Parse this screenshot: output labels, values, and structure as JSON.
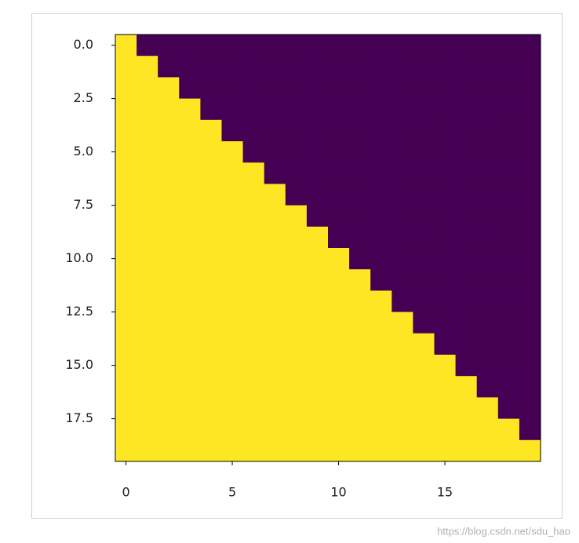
{
  "chart_data": {
    "type": "heatmap",
    "values": [
      [
        1,
        0,
        0,
        0,
        0,
        0,
        0,
        0,
        0,
        0,
        0,
        0,
        0,
        0,
        0,
        0,
        0,
        0,
        0,
        0
      ],
      [
        1,
        1,
        0,
        0,
        0,
        0,
        0,
        0,
        0,
        0,
        0,
        0,
        0,
        0,
        0,
        0,
        0,
        0,
        0,
        0
      ],
      [
        1,
        1,
        1,
        0,
        0,
        0,
        0,
        0,
        0,
        0,
        0,
        0,
        0,
        0,
        0,
        0,
        0,
        0,
        0,
        0
      ],
      [
        1,
        1,
        1,
        1,
        0,
        0,
        0,
        0,
        0,
        0,
        0,
        0,
        0,
        0,
        0,
        0,
        0,
        0,
        0,
        0
      ],
      [
        1,
        1,
        1,
        1,
        1,
        0,
        0,
        0,
        0,
        0,
        0,
        0,
        0,
        0,
        0,
        0,
        0,
        0,
        0,
        0
      ],
      [
        1,
        1,
        1,
        1,
        1,
        1,
        0,
        0,
        0,
        0,
        0,
        0,
        0,
        0,
        0,
        0,
        0,
        0,
        0,
        0
      ],
      [
        1,
        1,
        1,
        1,
        1,
        1,
        1,
        0,
        0,
        0,
        0,
        0,
        0,
        0,
        0,
        0,
        0,
        0,
        0,
        0
      ],
      [
        1,
        1,
        1,
        1,
        1,
        1,
        1,
        1,
        0,
        0,
        0,
        0,
        0,
        0,
        0,
        0,
        0,
        0,
        0,
        0
      ],
      [
        1,
        1,
        1,
        1,
        1,
        1,
        1,
        1,
        1,
        0,
        0,
        0,
        0,
        0,
        0,
        0,
        0,
        0,
        0,
        0
      ],
      [
        1,
        1,
        1,
        1,
        1,
        1,
        1,
        1,
        1,
        1,
        0,
        0,
        0,
        0,
        0,
        0,
        0,
        0,
        0,
        0
      ],
      [
        1,
        1,
        1,
        1,
        1,
        1,
        1,
        1,
        1,
        1,
        1,
        0,
        0,
        0,
        0,
        0,
        0,
        0,
        0,
        0
      ],
      [
        1,
        1,
        1,
        1,
        1,
        1,
        1,
        1,
        1,
        1,
        1,
        1,
        0,
        0,
        0,
        0,
        0,
        0,
        0,
        0
      ],
      [
        1,
        1,
        1,
        1,
        1,
        1,
        1,
        1,
        1,
        1,
        1,
        1,
        1,
        0,
        0,
        0,
        0,
        0,
        0,
        0
      ],
      [
        1,
        1,
        1,
        1,
        1,
        1,
        1,
        1,
        1,
        1,
        1,
        1,
        1,
        1,
        0,
        0,
        0,
        0,
        0,
        0
      ],
      [
        1,
        1,
        1,
        1,
        1,
        1,
        1,
        1,
        1,
        1,
        1,
        1,
        1,
        1,
        1,
        0,
        0,
        0,
        0,
        0
      ],
      [
        1,
        1,
        1,
        1,
        1,
        1,
        1,
        1,
        1,
        1,
        1,
        1,
        1,
        1,
        1,
        1,
        0,
        0,
        0,
        0
      ],
      [
        1,
        1,
        1,
        1,
        1,
        1,
        1,
        1,
        1,
        1,
        1,
        1,
        1,
        1,
        1,
        1,
        1,
        0,
        0,
        0
      ],
      [
        1,
        1,
        1,
        1,
        1,
        1,
        1,
        1,
        1,
        1,
        1,
        1,
        1,
        1,
        1,
        1,
        1,
        1,
        0,
        0
      ],
      [
        1,
        1,
        1,
        1,
        1,
        1,
        1,
        1,
        1,
        1,
        1,
        1,
        1,
        1,
        1,
        1,
        1,
        1,
        1,
        0
      ],
      [
        1,
        1,
        1,
        1,
        1,
        1,
        1,
        1,
        1,
        1,
        1,
        1,
        1,
        1,
        1,
        1,
        1,
        1,
        1,
        1
      ]
    ],
    "colorscale": [
      "#440154",
      "#fde725"
    ],
    "clim": [
      0,
      1
    ],
    "xlim": [
      -0.5,
      19.5
    ],
    "ylim": [
      19.5,
      -0.5
    ],
    "xticks": [
      0,
      5,
      10,
      15
    ],
    "yticks": [
      {
        "value": 0,
        "label": "0.0"
      },
      {
        "value": 2.5,
        "label": "2.5"
      },
      {
        "value": 5,
        "label": "5.0"
      },
      {
        "value": 7.5,
        "label": "7.5"
      },
      {
        "value": 10,
        "label": "10.0"
      },
      {
        "value": 12.5,
        "label": "12.5"
      },
      {
        "value": 15,
        "label": "15.0"
      },
      {
        "value": 17.5,
        "label": "17.5"
      }
    ]
  },
  "watermark": "https://blog.csdn.net/sdu_hao"
}
